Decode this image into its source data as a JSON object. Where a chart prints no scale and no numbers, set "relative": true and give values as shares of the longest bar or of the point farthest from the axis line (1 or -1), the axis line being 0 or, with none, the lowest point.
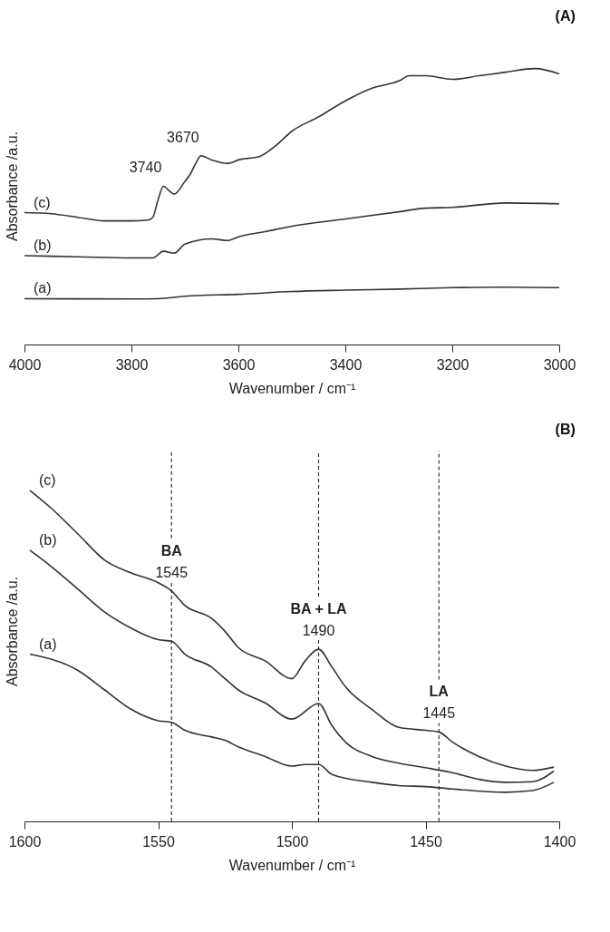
{
  "chart_data": [
    {
      "type": "line",
      "title": "(A)",
      "xlabel": "Wavenumber / cm⁻¹",
      "ylabel": "Absorbance /a.u.",
      "relative": true,
      "xlim": [
        4000,
        3000
      ],
      "xticks": [
        4000,
        3800,
        3600,
        3400,
        3200,
        3000
      ],
      "grid": false,
      "marker": "none",
      "line_style": "solid",
      "series": [
        {
          "name": "(c)",
          "color": "#333333",
          "x": [
            4000,
            3950,
            3900,
            3850,
            3800,
            3770,
            3760,
            3750,
            3740,
            3730,
            3720,
            3700,
            3690,
            3680,
            3670,
            3650,
            3620,
            3600,
            3560,
            3530,
            3500,
            3450,
            3400,
            3350,
            3300,
            3280,
            3250,
            3200,
            3150,
            3100,
            3045,
            3000
          ],
          "values": [
            0.478,
            0.474,
            0.461,
            0.448,
            0.448,
            0.451,
            0.461,
            0.526,
            0.574,
            0.558,
            0.545,
            0.591,
            0.617,
            0.656,
            0.684,
            0.669,
            0.656,
            0.669,
            0.682,
            0.721,
            0.773,
            0.825,
            0.883,
            0.929,
            0.955,
            0.974,
            0.974,
            0.961,
            0.974,
            0.987,
            1.0,
            0.981
          ]
        },
        {
          "name": "(b)",
          "color": "#333333",
          "x": [
            4000,
            3900,
            3800,
            3760,
            3740,
            3720,
            3700,
            3650,
            3620,
            3600,
            3550,
            3500,
            3400,
            3300,
            3250,
            3200,
            3100,
            3000
          ],
          "values": [
            0.322,
            0.318,
            0.314,
            0.314,
            0.338,
            0.331,
            0.364,
            0.383,
            0.377,
            0.39,
            0.409,
            0.429,
            0.455,
            0.481,
            0.494,
            0.497,
            0.513,
            0.51
          ]
        },
        {
          "name": "(a)",
          "color": "#333333",
          "x": [
            4000,
            3800,
            3750,
            3700,
            3600,
            3500,
            3400,
            3300,
            3200,
            3100,
            3000
          ],
          "values": [
            0.166,
            0.165,
            0.166,
            0.175,
            0.182,
            0.192,
            0.197,
            0.201,
            0.206,
            0.208,
            0.206
          ]
        }
      ],
      "annotations": [
        {
          "text": "3740",
          "x": 3740,
          "y": 0.574
        },
        {
          "text": "3670",
          "x": 3670,
          "y": 0.684
        }
      ]
    },
    {
      "type": "line",
      "title": "(B)",
      "xlabel": "Wavenumber / cm⁻¹",
      "ylabel": "Absorbance /a.u.",
      "relative": true,
      "xlim": [
        1600,
        1400
      ],
      "xticks": [
        1600,
        1550,
        1500,
        1450,
        1400
      ],
      "grid": false,
      "marker": "none",
      "line_style": "solid",
      "series": [
        {
          "name": "(c)",
          "color": "#333333",
          "x": [
            1598,
            1590,
            1580,
            1570,
            1560,
            1550,
            1545,
            1540,
            1530,
            1525,
            1520,
            1510,
            1500,
            1495,
            1490,
            1485,
            1480,
            1470,
            1460,
            1450,
            1445,
            1440,
            1430,
            1420,
            1410,
            1402
          ],
          "values": [
            1.0,
            0.946,
            0.868,
            0.789,
            0.75,
            0.721,
            0.696,
            0.652,
            0.613,
            0.574,
            0.525,
            0.485,
            0.431,
            0.485,
            0.52,
            0.466,
            0.407,
            0.338,
            0.284,
            0.275,
            0.27,
            0.24,
            0.196,
            0.167,
            0.154,
            0.164
          ]
        },
        {
          "name": "(b)",
          "color": "#333333",
          "x": [
            1598,
            1590,
            1580,
            1570,
            1560,
            1550,
            1545,
            1540,
            1530,
            1525,
            1520,
            1510,
            1500,
            1490,
            1485,
            1480,
            1470,
            1460,
            1450,
            1440,
            1430,
            1420,
            1410,
            1402
          ],
          "values": [
            0.819,
            0.77,
            0.701,
            0.632,
            0.583,
            0.549,
            0.544,
            0.505,
            0.466,
            0.431,
            0.397,
            0.358,
            0.309,
            0.356,
            0.289,
            0.24,
            0.196,
            0.176,
            0.162,
            0.147,
            0.127,
            0.118,
            0.12,
            0.152
          ]
        },
        {
          "name": "(a)",
          "color": "#333333",
          "x": [
            1598,
            1580,
            1570,
            1560,
            1550,
            1545,
            1540,
            1530,
            1525,
            1520,
            1510,
            1500,
            1495,
            1490,
            1485,
            1470,
            1460,
            1450,
            1440,
            1420,
            1410,
            1402
          ],
          "values": [
            0.505,
            0.456,
            0.397,
            0.338,
            0.304,
            0.299,
            0.275,
            0.255,
            0.245,
            0.225,
            0.196,
            0.167,
            0.172,
            0.172,
            0.142,
            0.118,
            0.108,
            0.105,
            0.098,
            0.088,
            0.093,
            0.118
          ]
        }
      ],
      "ref_lines": [
        {
          "axis": "x",
          "value": 1545,
          "label": "BA",
          "line_style": "dashed",
          "color": "#333333"
        },
        {
          "axis": "x",
          "value": 1490,
          "label": "BA + LA",
          "line_style": "dashed",
          "color": "#333333"
        },
        {
          "axis": "x",
          "value": 1445,
          "label": "LA",
          "line_style": "dashed",
          "color": "#333333"
        }
      ],
      "annotations": [
        {
          "text": "1545",
          "x": 1545,
          "y": 0.696
        },
        {
          "text": "1490",
          "x": 1490,
          "y": 0.52
        },
        {
          "text": "1445",
          "x": 1445,
          "y": 0.27
        }
      ]
    }
  ]
}
